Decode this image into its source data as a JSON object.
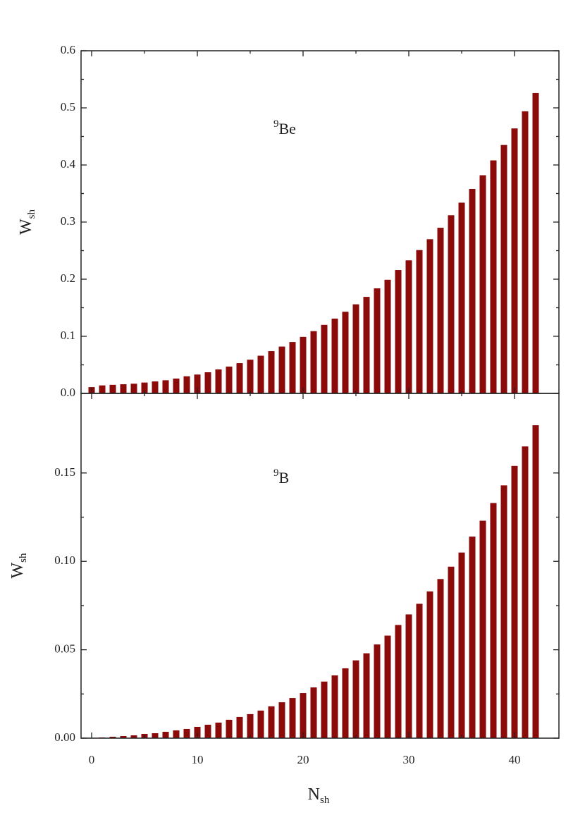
{
  "chart_data": [
    {
      "type": "bar",
      "annotation_sup": "9",
      "annotation": "Be",
      "ylabel": "W",
      "ylabel_sub": "sh",
      "color": "#8b0a0a",
      "x": [
        0,
        1,
        2,
        3,
        4,
        5,
        6,
        7,
        8,
        9,
        10,
        11,
        12,
        13,
        14,
        15,
        16,
        17,
        18,
        19,
        20,
        21,
        22,
        23,
        24,
        25,
        26,
        27,
        28,
        29,
        30,
        31,
        32,
        33,
        34,
        35,
        36,
        37,
        38,
        39,
        40,
        41,
        42
      ],
      "values": [
        0.011,
        0.014,
        0.015,
        0.016,
        0.017,
        0.019,
        0.021,
        0.023,
        0.026,
        0.03,
        0.033,
        0.037,
        0.042,
        0.047,
        0.053,
        0.059,
        0.066,
        0.074,
        0.082,
        0.09,
        0.099,
        0.109,
        0.12,
        0.131,
        0.143,
        0.156,
        0.169,
        0.184,
        0.199,
        0.216,
        0.233,
        0.251,
        0.27,
        0.29,
        0.312,
        0.334,
        0.358,
        0.382,
        0.408,
        0.435,
        0.464,
        0.494,
        0.526
      ],
      "xlim": [
        -1,
        44.2
      ],
      "xticks": [
        0,
        10,
        20,
        30,
        40
      ],
      "ylim": [
        0,
        0.6
      ],
      "yticks": [
        {
          "value": 0,
          "label": "0.0"
        },
        0.1,
        0.2,
        0.3,
        0.4,
        0.5,
        0.6
      ]
    },
    {
      "type": "bar",
      "annotation_sup": "9",
      "annotation": "B",
      "ylabel": "W",
      "ylabel_sub": "sh",
      "xlabel": "N",
      "xlabel_sub": "sh",
      "color": "#8b0a0a",
      "x": [
        0,
        1,
        2,
        3,
        4,
        5,
        6,
        7,
        8,
        9,
        10,
        11,
        12,
        13,
        14,
        15,
        16,
        17,
        18,
        19,
        20,
        21,
        22,
        23,
        24,
        25,
        26,
        27,
        28,
        29,
        30,
        31,
        32,
        33,
        34,
        35,
        36,
        37,
        38,
        39,
        40,
        41,
        42
      ],
      "values": [
        0.0002,
        0.0004,
        0.0008,
        0.0012,
        0.0016,
        0.0024,
        0.0028,
        0.0036,
        0.0044,
        0.0052,
        0.0064,
        0.0076,
        0.0088,
        0.0104,
        0.012,
        0.0136,
        0.0156,
        0.018,
        0.0203,
        0.0227,
        0.0255,
        0.0287,
        0.032,
        0.0355,
        0.0395,
        0.044,
        0.048,
        0.053,
        0.058,
        0.064,
        0.07,
        0.076,
        0.083,
        0.09,
        0.097,
        0.105,
        0.114,
        0.123,
        0.133,
        0.143,
        0.154,
        0.165,
        0.177
      ],
      "xlim": [
        -1,
        44.2
      ],
      "xticks": [
        0,
        10,
        20,
        30,
        40
      ],
      "ylim": [
        0,
        0.195
      ],
      "yticks": [
        {
          "value": 0,
          "label": "0.00"
        },
        0.05,
        {
          "value": 0.1,
          "label": "0.10"
        },
        0.15
      ]
    }
  ]
}
